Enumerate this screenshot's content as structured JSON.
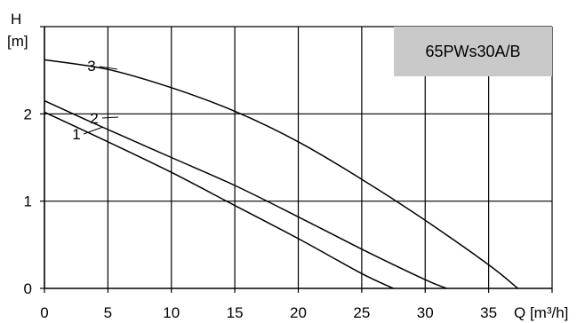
{
  "chart_data": {
    "type": "line",
    "badge": "65PWs30A/B",
    "ylabel_symbol": "H",
    "ylabel_unit": "[m]",
    "xlabel": "Q [m³/h]",
    "xlim": [
      0,
      40
    ],
    "ylim": [
      0,
      3
    ],
    "x_ticks": [
      0,
      5,
      10,
      15,
      20,
      25,
      30,
      35
    ],
    "y_ticks": [
      0,
      1,
      2
    ],
    "grid": true,
    "series": [
      {
        "name": "1",
        "x": [
          0,
          5,
          10,
          15,
          20,
          25,
          27.5
        ],
        "y": [
          2.02,
          1.68,
          1.33,
          0.95,
          0.57,
          0.17,
          0.0
        ]
      },
      {
        "name": "2",
        "x": [
          0,
          5,
          10,
          15,
          20,
          25,
          30,
          31.7
        ],
        "y": [
          2.15,
          1.82,
          1.5,
          1.18,
          0.82,
          0.45,
          0.1,
          0.0
        ]
      },
      {
        "name": "3",
        "x": [
          0,
          5,
          10,
          15,
          20,
          25,
          30,
          35,
          37.3
        ],
        "y": [
          2.62,
          2.51,
          2.3,
          2.03,
          1.68,
          1.25,
          0.78,
          0.27,
          0.0
        ]
      }
    ]
  }
}
